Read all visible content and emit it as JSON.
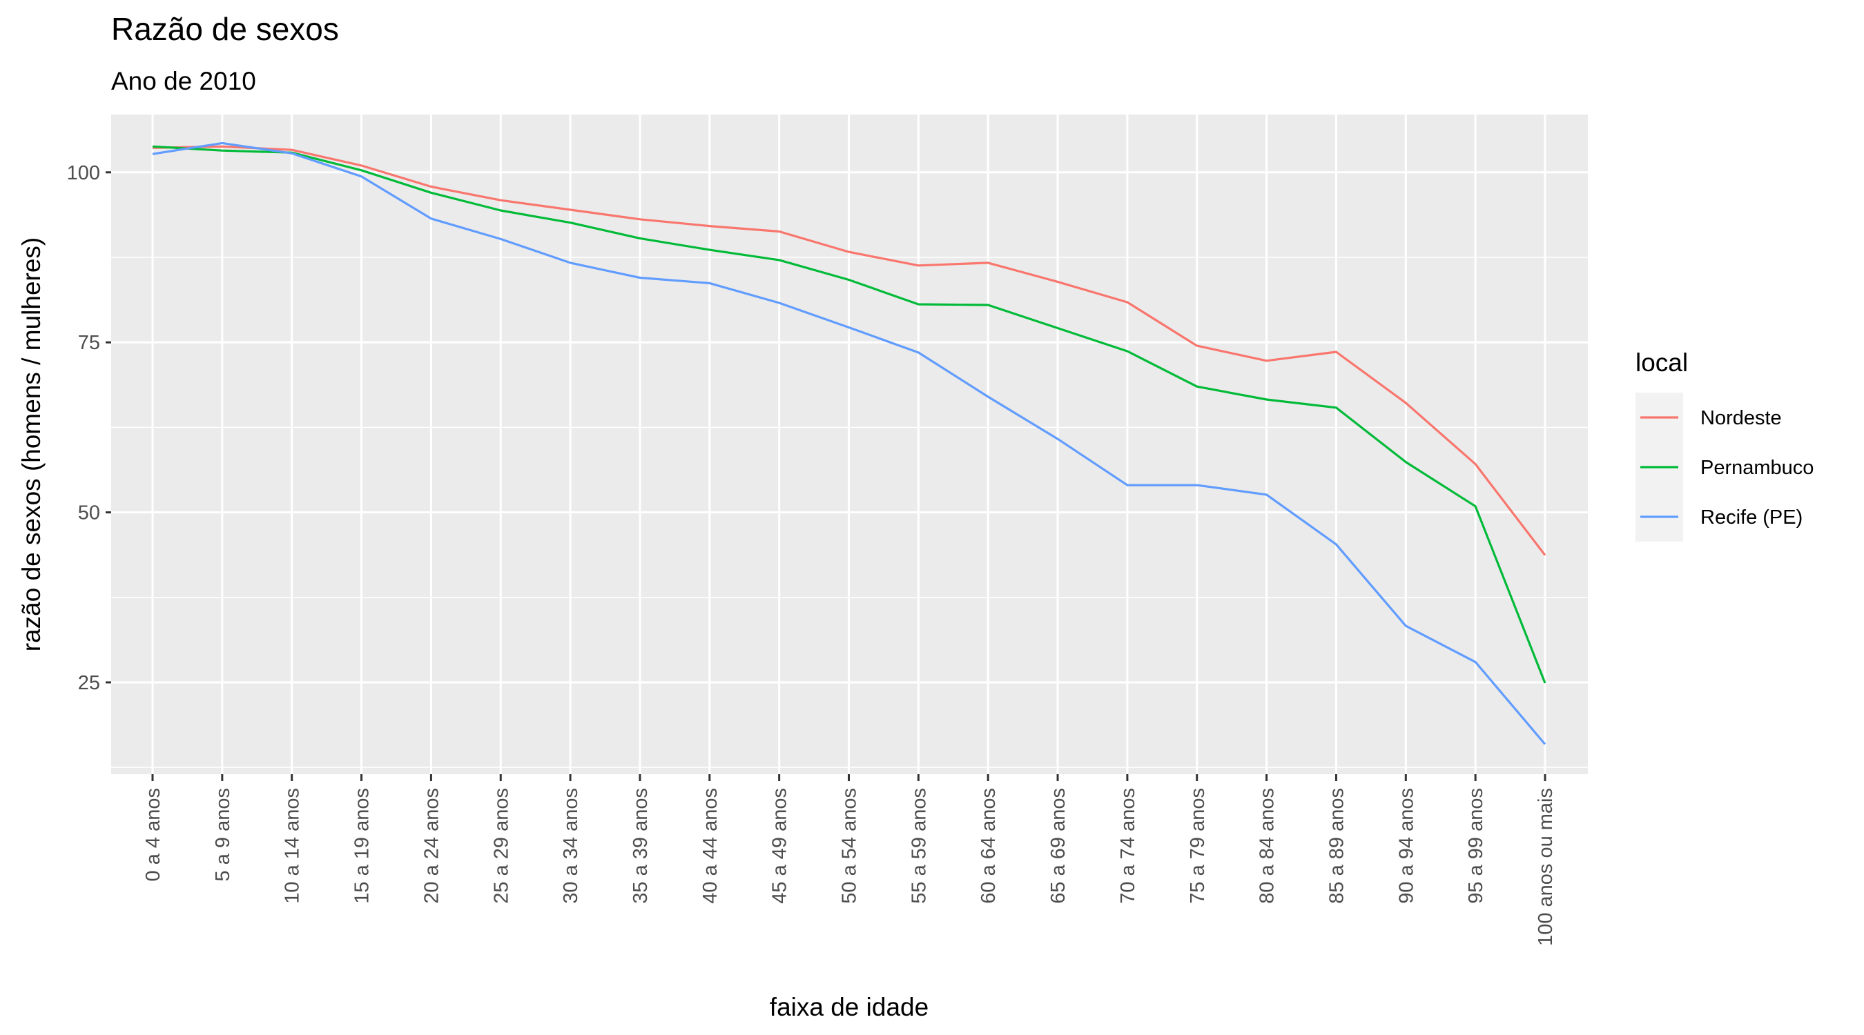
{
  "chart_data": {
    "type": "line",
    "title": "Razão de sexos",
    "subtitle": "Ano de 2010",
    "xlabel": "faixa de idade",
    "ylabel": "razão de sexos (homens / mulheres)",
    "ylim": [
      11.5,
      108.5
    ],
    "yticks": [
      25,
      50,
      75,
      100
    ],
    "grid": true,
    "legend": {
      "title": "local",
      "position": "right"
    },
    "categories": [
      "0 a 4 anos",
      "5 a 9 anos",
      "10 a 14 anos",
      "15 a 19 anos",
      "20 a 24 anos",
      "25 a 29 anos",
      "30 a 34 anos",
      "35 a 39 anos",
      "40 a 44 anos",
      "45 a 49 anos",
      "50 a 54 anos",
      "55 a 59 anos",
      "60 a 64 anos",
      "65 a 69 anos",
      "70 a 74 anos",
      "75 a 79 anos",
      "80 a 84 anos",
      "85 a 89 anos",
      "90 a 94 anos",
      "95 a 99 anos",
      "100 anos ou mais"
    ],
    "series": [
      {
        "name": "Nordeste",
        "color": "#F8766D",
        "values": [
          103.6,
          103.8,
          103.3,
          101.0,
          97.9,
          95.9,
          94.5,
          93.1,
          92.1,
          91.3,
          88.3,
          86.3,
          86.7,
          83.9,
          80.9,
          74.5,
          72.3,
          73.6,
          66.1,
          57.1,
          43.7
        ]
      },
      {
        "name": "Pernambuco",
        "color": "#00BA38",
        "values": [
          103.8,
          103.2,
          102.9,
          100.3,
          97.0,
          94.4,
          92.6,
          90.3,
          88.6,
          87.1,
          84.2,
          80.6,
          80.5,
          77.1,
          73.7,
          68.5,
          66.6,
          65.4,
          57.4,
          50.9,
          24.9
        ]
      },
      {
        "name": "Recife (PE)",
        "color": "#619CFF",
        "values": [
          102.7,
          104.3,
          102.8,
          99.4,
          93.2,
          90.2,
          86.7,
          84.5,
          83.7,
          80.8,
          77.2,
          73.5,
          67.0,
          60.8,
          54.0,
          54.0,
          52.6,
          45.3,
          33.3,
          28.0,
          15.9
        ]
      }
    ]
  }
}
